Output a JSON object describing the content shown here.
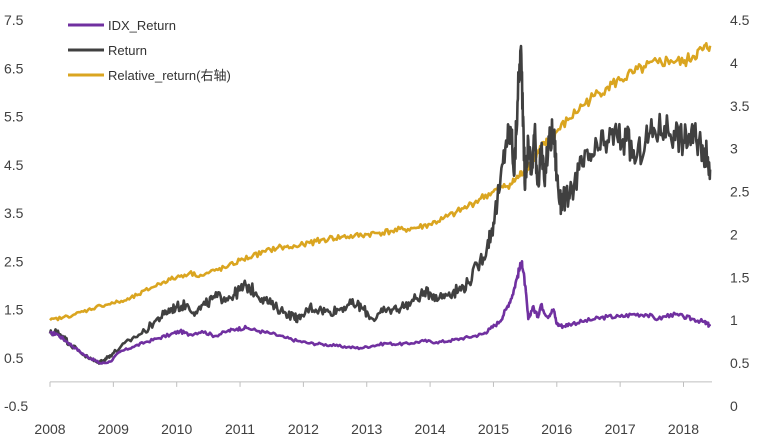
{
  "chart_data": {
    "type": "line",
    "title": "",
    "xlabel": "",
    "ylabel": "",
    "y2label": "",
    "xlim": [
      2008.0,
      2018.45
    ],
    "ylim_left": [
      -0.5,
      7.5
    ],
    "ylim_right": [
      0,
      4.5
    ],
    "x_ticks": [
      2008,
      2009,
      2010,
      2011,
      2012,
      2013,
      2014,
      2015,
      2016,
      2017,
      2018
    ],
    "x_tick_labels": [
      "2008",
      "2009",
      "2010",
      "2011",
      "2012",
      "2013",
      "2014",
      "2015",
      "2016",
      "2017",
      "2018"
    ],
    "y_left_ticks": [
      -0.5,
      0.5,
      1.5,
      2.5,
      3.5,
      4.5,
      5.5,
      6.5,
      7.5
    ],
    "y_left_tick_labels": [
      "-0.5",
      "0.5",
      "1.5",
      "2.5",
      "3.5",
      "4.5",
      "5.5",
      "6.5",
      "7.5"
    ],
    "y_right_ticks": [
      0,
      0.5,
      1,
      1.5,
      2,
      2.5,
      3,
      3.5,
      4,
      4.5
    ],
    "y_right_tick_labels": [
      "0",
      "0.5",
      "1",
      "1.5",
      "2",
      "2.5",
      "3",
      "3.5",
      "4",
      "4.5"
    ],
    "grid": false,
    "legend_position": "top-left",
    "series": [
      {
        "name": "IDX_Return",
        "axis": "left",
        "color": "#7030A0",
        "x": [
          2008.0,
          2008.1,
          2008.25,
          2008.4,
          2008.55,
          2008.7,
          2008.8,
          2008.95,
          2009.1,
          2009.3,
          2009.5,
          2009.7,
          2009.9,
          2010.05,
          2010.2,
          2010.4,
          2010.6,
          2010.8,
          2010.95,
          2011.1,
          2011.3,
          2011.5,
          2011.7,
          2011.9,
          2012.1,
          2012.3,
          2012.5,
          2012.7,
          2012.9,
          2013.1,
          2013.3,
          2013.5,
          2013.7,
          2013.9,
          2014.1,
          2014.3,
          2014.5,
          2014.7,
          2014.85,
          2014.95,
          2015.1,
          2015.2,
          2015.3,
          2015.38,
          2015.45,
          2015.5,
          2015.55,
          2015.62,
          2015.7,
          2015.75,
          2015.85,
          2015.95,
          2016.0,
          2016.1,
          2016.2,
          2016.4,
          2016.6,
          2016.8,
          2017.0,
          2017.2,
          2017.4,
          2017.6,
          2017.8,
          2018.0,
          2018.15,
          2018.3,
          2018.38,
          2018.42
        ],
        "values": [
          1.0,
          1.0,
          0.85,
          0.7,
          0.55,
          0.45,
          0.38,
          0.42,
          0.62,
          0.72,
          0.82,
          0.9,
          0.98,
          1.05,
          0.98,
          1.05,
          0.95,
          1.05,
          1.1,
          1.12,
          1.05,
          1.0,
          0.92,
          0.85,
          0.8,
          0.78,
          0.75,
          0.72,
          0.7,
          0.75,
          0.8,
          0.78,
          0.8,
          0.85,
          0.82,
          0.85,
          0.9,
          0.95,
          1.0,
          1.1,
          1.25,
          1.5,
          1.8,
          2.2,
          2.5,
          2.0,
          1.3,
          1.55,
          1.35,
          1.6,
          1.35,
          1.5,
          1.2,
          1.15,
          1.2,
          1.25,
          1.3,
          1.35,
          1.35,
          1.4,
          1.4,
          1.3,
          1.4,
          1.35,
          1.3,
          1.25,
          1.2,
          1.15
        ]
      },
      {
        "name": "Return",
        "axis": "left",
        "color": "#404040",
        "x": [
          2008.0,
          2008.1,
          2008.2,
          2008.3,
          2008.45,
          2008.6,
          2008.75,
          2008.85,
          2008.95,
          2009.1,
          2009.3,
          2009.5,
          2009.65,
          2009.8,
          2009.9,
          2010.0,
          2010.15,
          2010.3,
          2010.45,
          2010.6,
          2010.75,
          2010.9,
          2011.0,
          2011.1,
          2011.25,
          2011.4,
          2011.55,
          2011.7,
          2011.85,
          2011.95,
          2012.1,
          2012.25,
          2012.4,
          2012.55,
          2012.7,
          2012.85,
          2012.95,
          2013.1,
          2013.25,
          2013.4,
          2013.55,
          2013.7,
          2013.85,
          2014.0,
          2014.15,
          2014.3,
          2014.45,
          2014.6,
          2014.75,
          2014.9,
          2015.0,
          2015.1,
          2015.2,
          2015.28,
          2015.33,
          2015.38,
          2015.43,
          2015.47,
          2015.5,
          2015.55,
          2015.6,
          2015.65,
          2015.7,
          2015.75,
          2015.8,
          2015.88,
          2015.95,
          2016.0,
          2016.05,
          2016.1,
          2016.2,
          2016.35,
          2016.5,
          2016.65,
          2016.8,
          2016.95,
          2017.1,
          2017.25,
          2017.4,
          2017.55,
          2017.7,
          2017.85,
          2018.0,
          2018.1,
          2018.2,
          2018.3,
          2018.38,
          2018.42
        ],
        "values": [
          1.0,
          1.05,
          0.95,
          0.8,
          0.65,
          0.5,
          0.4,
          0.45,
          0.55,
          0.7,
          0.9,
          1.05,
          1.25,
          1.4,
          1.5,
          1.55,
          1.6,
          1.45,
          1.6,
          1.75,
          1.75,
          1.8,
          1.9,
          2.0,
          1.85,
          1.7,
          1.55,
          1.45,
          1.35,
          1.3,
          1.55,
          1.5,
          1.45,
          1.5,
          1.6,
          1.6,
          1.5,
          1.3,
          1.45,
          1.5,
          1.55,
          1.65,
          1.8,
          1.85,
          1.75,
          1.85,
          1.9,
          2.05,
          2.4,
          2.8,
          3.3,
          4.0,
          5.0,
          5.2,
          4.3,
          5.8,
          6.9,
          5.5,
          4.0,
          5.0,
          4.3,
          5.2,
          4.1,
          4.8,
          4.2,
          5.0,
          5.2,
          4.3,
          3.7,
          3.8,
          3.8,
          4.4,
          4.6,
          4.8,
          5.0,
          5.1,
          5.0,
          4.6,
          5.0,
          5.2,
          5.3,
          5.2,
          5.0,
          5.1,
          5.0,
          4.9,
          4.6,
          4.4
        ]
      },
      {
        "name": "Relative_return(右轴)",
        "axis": "right",
        "color": "#DAA520",
        "x": [
          2008.0,
          2008.2,
          2008.4,
          2008.6,
          2008.8,
          2009.0,
          2009.2,
          2009.4,
          2009.6,
          2009.8,
          2010.0,
          2010.2,
          2010.4,
          2010.6,
          2010.8,
          2011.0,
          2011.2,
          2011.4,
          2011.6,
          2011.8,
          2012.0,
          2012.2,
          2012.4,
          2012.6,
          2012.8,
          2013.0,
          2013.2,
          2013.4,
          2013.6,
          2013.8,
          2014.0,
          2014.2,
          2014.4,
          2014.6,
          2014.8,
          2015.0,
          2015.15,
          2015.3,
          2015.4,
          2015.5,
          2015.6,
          2015.7,
          2015.8,
          2015.9,
          2016.0,
          2016.2,
          2016.4,
          2016.6,
          2016.8,
          2017.0,
          2017.2,
          2017.4,
          2017.6,
          2017.8,
          2018.0,
          2018.15,
          2018.3,
          2018.42
        ],
        "values": [
          1.0,
          1.03,
          1.07,
          1.12,
          1.17,
          1.2,
          1.23,
          1.3,
          1.38,
          1.45,
          1.5,
          1.55,
          1.52,
          1.58,
          1.62,
          1.7,
          1.75,
          1.8,
          1.85,
          1.85,
          1.88,
          1.92,
          1.95,
          1.97,
          1.98,
          2.0,
          2.02,
          2.04,
          2.06,
          2.08,
          2.12,
          2.18,
          2.25,
          2.33,
          2.42,
          2.5,
          2.55,
          2.6,
          2.68,
          2.75,
          2.85,
          2.95,
          3.05,
          3.1,
          3.2,
          3.35,
          3.5,
          3.62,
          3.72,
          3.8,
          3.88,
          3.95,
          4.0,
          4.03,
          4.0,
          4.08,
          4.15,
          4.2
        ]
      }
    ]
  }
}
